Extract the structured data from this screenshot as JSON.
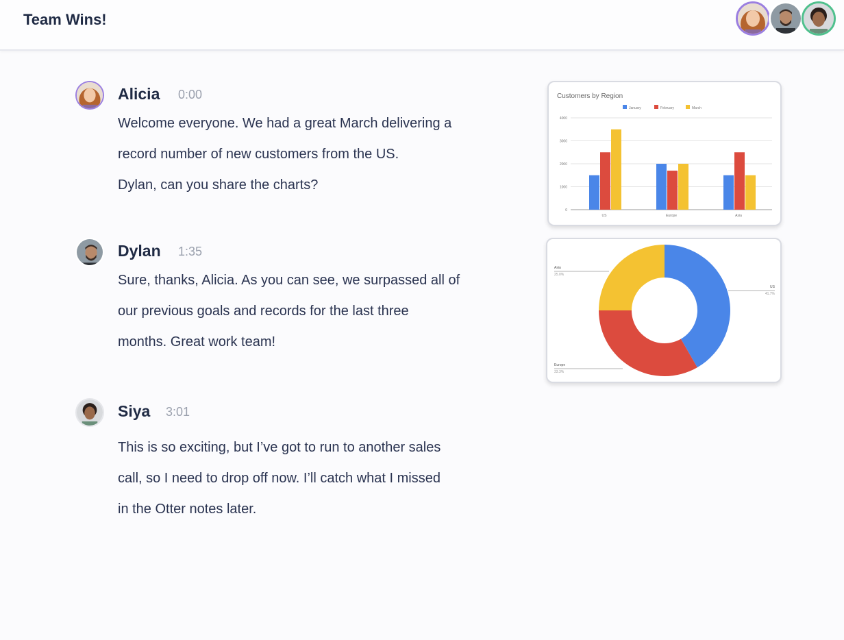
{
  "header": {
    "title": "Team Wins!",
    "participants": [
      {
        "name": "Alicia",
        "ring": "#9b7fe0"
      },
      {
        "name": "Dylan",
        "ring": "#ffffff"
      },
      {
        "name": "Siya",
        "ring": "#4fc08d"
      }
    ]
  },
  "messages": [
    {
      "speaker": "Alicia",
      "time": "0:00",
      "lines": [
        "Welcome everyone. We had a great March delivering a",
        "record number of new customers from the US.",
        "Dylan, can you share the charts?"
      ]
    },
    {
      "speaker": "Dylan",
      "time": "1:35",
      "lines": [
        "Sure, thanks, Alicia. As you can see, we surpassed all of",
        "our previous goals and records for the last three",
        "months. Great work team!"
      ]
    },
    {
      "speaker": "Siya",
      "time": "3:01",
      "lines": [
        "This is so exciting, but I’ve got to run to another sales",
        "call, so I need to drop off now. I’ll catch what I missed",
        "in the Otter notes later."
      ]
    }
  ],
  "chart_data": [
    {
      "type": "bar",
      "title": "Customers by Region",
      "categories": [
        "US",
        "Europe",
        "Asia"
      ],
      "series": [
        {
          "name": "January",
          "values": [
            1500,
            2000,
            1500
          ],
          "color": "#4a86e8"
        },
        {
          "name": "February",
          "values": [
            2500,
            1700,
            2500
          ],
          "color": "#dc4b3e"
        },
        {
          "name": "March",
          "values": [
            3500,
            2000,
            1500
          ],
          "color": "#f4c232"
        }
      ],
      "yticks": [
        "0",
        "1000",
        "2000",
        "3000",
        "4000"
      ],
      "ylim": [
        0,
        4000
      ],
      "legend": "top",
      "grid": true
    },
    {
      "type": "pie",
      "donut": true,
      "slices": [
        {
          "label": "US",
          "pct_label": "41.7%",
          "value": 41.7,
          "color": "#4a86e8"
        },
        {
          "label": "Europe",
          "pct_label": "33.3%",
          "value": 33.3,
          "color": "#dc4b3e"
        },
        {
          "label": "Asia",
          "pct_label": "25.0%",
          "value": 25.0,
          "color": "#f4c232"
        }
      ]
    }
  ]
}
